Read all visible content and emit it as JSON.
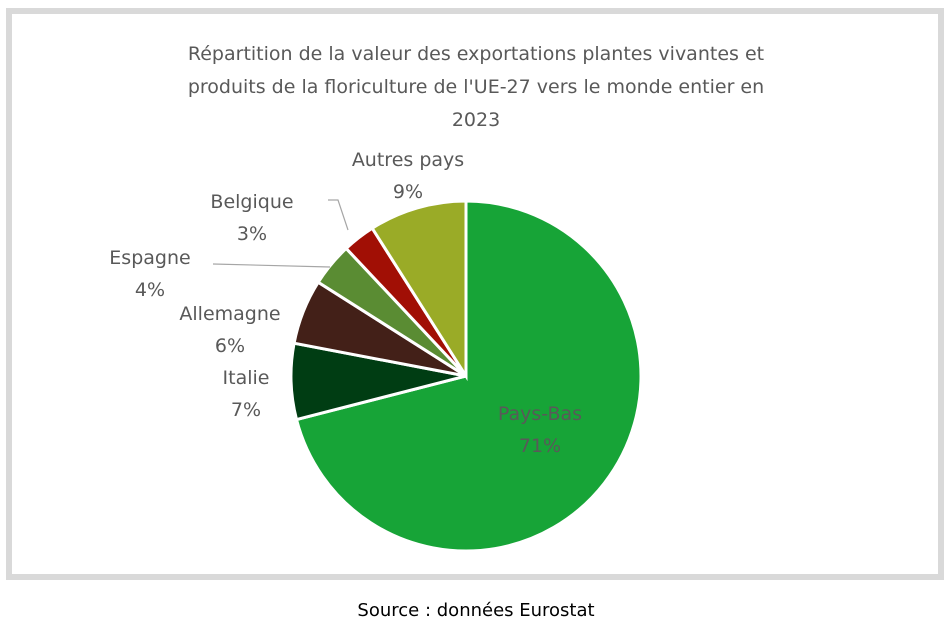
{
  "chart_data": {
    "type": "pie",
    "title_lines": [
      "Répartition de la valeur des exportations plantes vivantes et",
      "produits de la floriculture de l'UE-27 vers le monde entier en",
      "2023"
    ],
    "start_angle": "12 o'clock, clockwise",
    "slices": [
      {
        "name": "Pays-Bas",
        "value": 71,
        "label": "71%",
        "color": "#17a437"
      },
      {
        "name": "Italie",
        "value": 7,
        "label": "7%",
        "color": "#003d13"
      },
      {
        "name": "Allemagne",
        "value": 6,
        "label": "6%",
        "color": "#432018"
      },
      {
        "name": "Espagne",
        "value": 4,
        "label": "4%",
        "color": "#5a8c33"
      },
      {
        "name": "Belgique",
        "value": 3,
        "label": "3%",
        "color": "#a10f05"
      },
      {
        "name": "Autres pays",
        "value": 9,
        "label": "9%",
        "color": "#9aab27"
      }
    ]
  },
  "source": "Source : données Eurostat"
}
